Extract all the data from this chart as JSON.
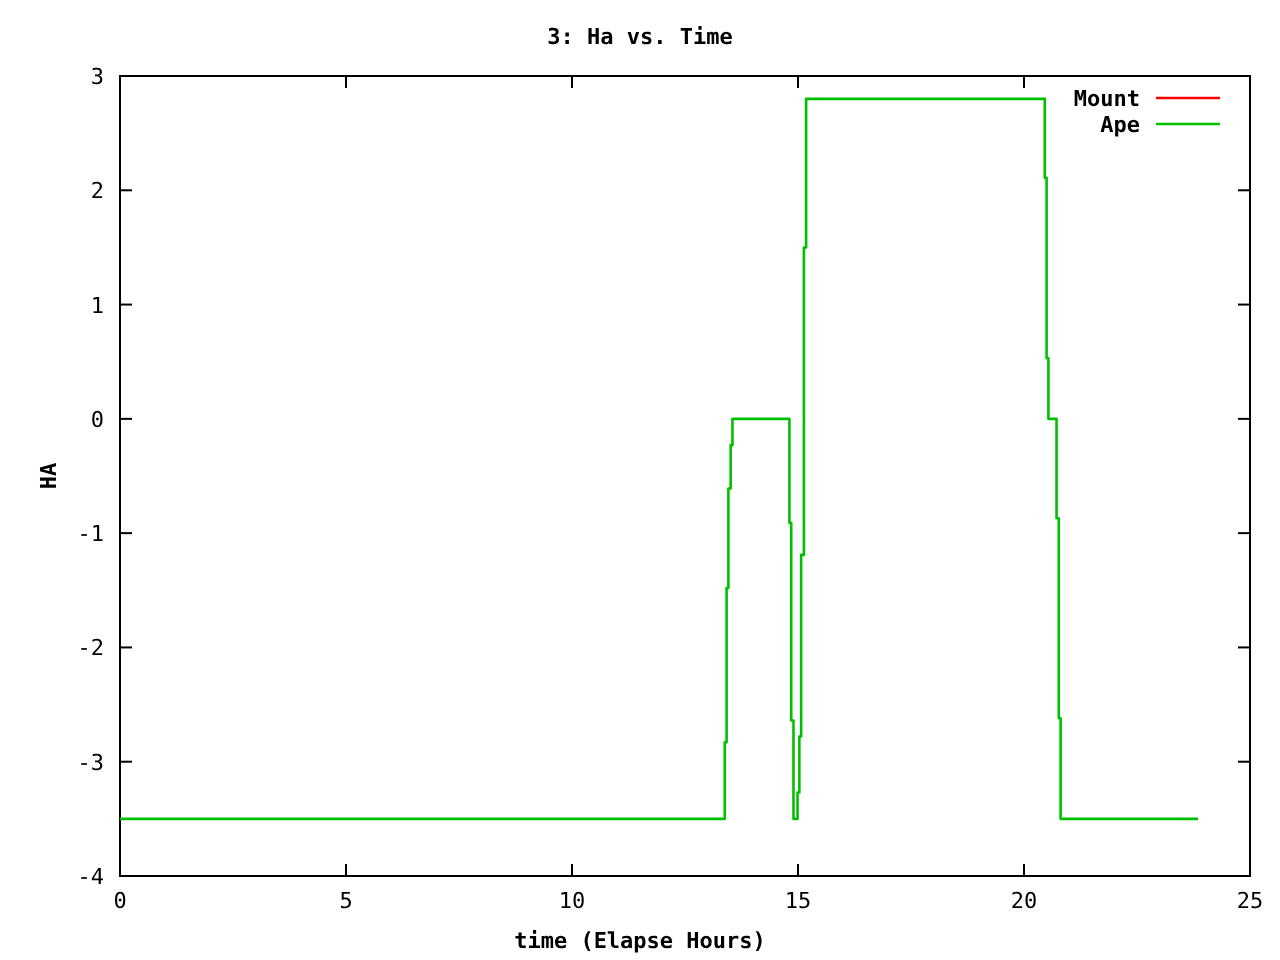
{
  "chart_data": {
    "type": "line",
    "title": "3: Ha vs. Time",
    "xlabel": "time (Elapse Hours)",
    "ylabel": "HA",
    "xlim": [
      0,
      25
    ],
    "ylim": [
      -4,
      3
    ],
    "xticks": [
      0,
      5,
      10,
      15,
      20,
      25
    ],
    "yticks": [
      -4,
      -3,
      -2,
      -1,
      0,
      1,
      2,
      3
    ],
    "grid": false,
    "legend": "top right",
    "marker": "none",
    "line_style": "solid",
    "series": [
      {
        "name": "Mount",
        "color": "#ff0000"
      },
      {
        "name": "Ape",
        "color": "#00c000",
        "x": [
          0,
          13.38,
          13.38,
          13.42,
          13.42,
          13.46,
          13.46,
          13.51,
          13.51,
          13.55,
          13.55,
          14.76,
          14.81,
          14.81,
          14.85,
          14.85,
          14.9,
          14.9,
          14.99,
          14.99,
          15.03,
          15.03,
          15.07,
          15.07,
          15.13,
          15.13,
          15.18,
          15.18,
          20.46,
          20.46,
          20.5,
          20.5,
          20.54,
          20.54,
          20.72,
          20.72,
          20.77,
          20.77,
          20.81,
          20.81,
          23.85
        ],
        "values": [
          -3.5,
          -3.5,
          -2.83,
          -2.83,
          -1.48,
          -1.48,
          -0.61,
          -0.61,
          -0.23,
          -0.23,
          0,
          0,
          0,
          -0.91,
          -0.91,
          -2.64,
          -2.64,
          -3.5,
          -3.5,
          -3.27,
          -3.27,
          -2.78,
          -2.78,
          -1.19,
          -1.19,
          1.5,
          1.5,
          2.8,
          2.8,
          2.11,
          2.11,
          0.53,
          0.53,
          0,
          0,
          -0.87,
          -0.87,
          -2.62,
          -2.62,
          -3.5,
          -3.5
        ]
      }
    ]
  }
}
